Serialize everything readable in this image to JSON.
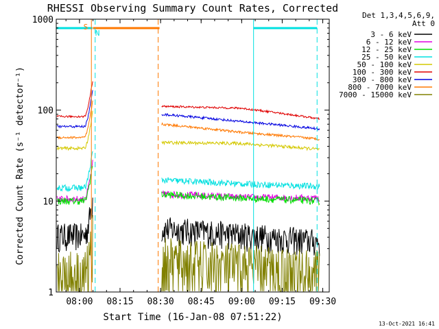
{
  "chart_data": {
    "type": "line",
    "title": "RHESSI Observing Summary Count Rates, Corrected",
    "xlabel": "Start Time (16-Jan-08 07:51:22)",
    "ylabel": "Corrected Count Rate (s⁻¹ detector⁻¹)",
    "yscale": "log",
    "ylim": [
      1,
      1000
    ],
    "x_unit": "minutes after 07:51:22",
    "xlim": [
      0,
      101
    ],
    "x_ticks": [
      {
        "label": "08:00",
        "value": 8.6
      },
      {
        "label": "08:15",
        "value": 23.6
      },
      {
        "label": "08:30",
        "value": 38.6
      },
      {
        "label": "08:45",
        "value": 53.6
      },
      {
        "label": "09:00",
        "value": 68.6
      },
      {
        "label": "09:15",
        "value": 83.6
      },
      {
        "label": "09:30",
        "value": 98.6
      }
    ],
    "y_ticks": [
      {
        "label": "1",
        "value": 1
      },
      {
        "label": "10",
        "value": 10
      },
      {
        "label": "100",
        "value": 100
      },
      {
        "label": "1000",
        "value": 1000
      }
    ],
    "legend": {
      "header": [
        "Det 1,3,4,5,6,9,",
        "Att 0"
      ],
      "position": "right"
    },
    "data_gap": [
      13.6,
      39.0
    ],
    "series": [
      {
        "name": "3 - 6 keV",
        "color": "#000000",
        "levels": [
          4.2,
          5.0,
          4.3,
          3.6
        ],
        "noise": 0.35
      },
      {
        "name": "6 - 12 keV",
        "color": "#e000e0",
        "levels": [
          10.5,
          12.0,
          11.0,
          10.8
        ],
        "noise": 0.09
      },
      {
        "name": "12 - 25 keV",
        "color": "#00e000",
        "levels": [
          10.0,
          11.8,
          10.8,
          10.0
        ],
        "noise": 0.09
      },
      {
        "name": "25 - 50 keV",
        "color": "#00e0e0",
        "levels": [
          14.0,
          17.0,
          15.5,
          14.5
        ],
        "noise": 0.08
      },
      {
        "name": "50 - 100 keV",
        "color": "#d4c800",
        "levels": [
          38,
          44,
          43,
          37
        ],
        "noise": 0.04
      },
      {
        "name": "100 - 300 keV",
        "color": "#e00000",
        "levels": [
          85,
          110,
          105,
          80
        ],
        "noise": 0.025
      },
      {
        "name": "300 - 800 keV",
        "color": "#0000e0",
        "levels": [
          66,
          90,
          75,
          62
        ],
        "noise": 0.03
      },
      {
        "name": "800 - 7000 keV",
        "color": "#ff7800",
        "levels": [
          50,
          70,
          57,
          48
        ],
        "noise": 0.03
      },
      {
        "name": "7000 - 15000 keV",
        "color": "#808000",
        "levels": [
          1.6,
          2.2,
          1.9,
          1.6
        ],
        "noise": 0.8
      }
    ],
    "flags": [
      {
        "label": "S",
        "color": "#ff7800",
        "intervals": [
          [
            13.6,
            38.2
          ]
        ]
      },
      {
        "label": "N",
        "color": "#00e0e0",
        "intervals": [
          [
            0,
            13.4
          ],
          [
            73.0,
            96.5
          ]
        ]
      }
    ],
    "vlines": [
      {
        "x": 13.0,
        "color": "#ff7800",
        "style": "solid"
      },
      {
        "x": 14.4,
        "color": "#00e0e0",
        "style": "dashed"
      },
      {
        "x": 37.7,
        "color": "#ff7800",
        "style": "dashed"
      },
      {
        "x": 73.0,
        "color": "#00e0e0",
        "style": "solid"
      },
      {
        "x": 96.5,
        "color": "#00e0e0",
        "style": "dashed"
      }
    ]
  },
  "footer": {
    "timestamp": "13-Oct-2021 16:41"
  }
}
